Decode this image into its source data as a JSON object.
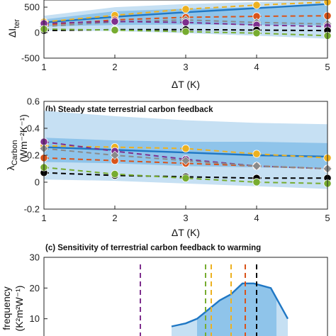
{
  "colors": {
    "band_light": "#c6e0f3",
    "band_dark": "#8fc4ea",
    "mean_line": "#1f77c4",
    "black": "#000000",
    "purple": "#7e2f8e",
    "orange": "#d95319",
    "yellow": "#edb120",
    "green": "#77ac30",
    "gray": "#8a8a8a"
  },
  "chart_data": [
    {
      "id": "a",
      "type": "line",
      "title": "",
      "ylabel_main": "ΔI",
      "ylabel_sub": "ter",
      "xlabel": "ΔT (K)",
      "x": [
        1,
        2,
        3,
        4,
        5
      ],
      "xticks": [
        "1",
        "2",
        "3",
        "4",
        "5"
      ],
      "yticks": [
        "-500",
        "0",
        "500"
      ],
      "ylim": [
        -500,
        640
      ],
      "xlim": [
        1,
        5
      ],
      "bands": [
        {
          "name": "outer",
          "upper": [
            330,
            500,
            560,
            600,
            640
          ],
          "lower": [
            40,
            30,
            -10,
            -60,
            -120
          ]
        },
        {
          "name": "inner",
          "upper": [
            260,
            420,
            470,
            500,
            530
          ],
          "lower": [
            120,
            150,
            160,
            150,
            140
          ]
        }
      ],
      "series": [
        {
          "name": "",
          "color": "mean_line",
          "dashed": false,
          "marker": "none",
          "values": [
            200,
            310,
            400,
            480,
            560
          ]
        },
        {
          "name": "",
          "color": "yellow",
          "dashed": true,
          "marker": "circle",
          "values": [
            210,
            340,
            460,
            540,
            600
          ]
        },
        {
          "name": "",
          "color": "orange",
          "dashed": true,
          "marker": "circle",
          "values": [
            150,
            250,
            300,
            320,
            330
          ]
        },
        {
          "name": "",
          "color": "gray",
          "dashed": true,
          "marker": "diamond",
          "values": [
            120,
            210,
            250,
            200,
            170
          ]
        },
        {
          "name": "",
          "color": "purple",
          "dashed": true,
          "marker": "circle",
          "values": [
            180,
            220,
            200,
            150,
            120
          ]
        },
        {
          "name": "",
          "color": "black",
          "dashed": true,
          "marker": "circle",
          "values": [
            40,
            60,
            60,
            50,
            40
          ]
        },
        {
          "name": "",
          "color": "green",
          "dashed": true,
          "marker": "circle",
          "values": [
            70,
            50,
            20,
            -10,
            -60
          ]
        }
      ]
    },
    {
      "id": "b",
      "type": "line",
      "title": "(b) Steady state terrestrial carbon feedback",
      "ylabel_main": "λ",
      "ylabel_sub": "Carbon",
      "ylabel_unit": "(Wm⁻²K⁻¹)",
      "xlabel": "ΔT (K)",
      "x": [
        1,
        2,
        3,
        4,
        5
      ],
      "xticks": [
        "1",
        "2",
        "3",
        "4",
        "5"
      ],
      "yticks": [
        "-0.2",
        "0",
        "0.2",
        "0.4",
        "0.6"
      ],
      "ylim": [
        -0.2,
        0.6
      ],
      "xlim": [
        1,
        5
      ],
      "bands": [
        {
          "name": "outer",
          "upper": [
            0.53,
            0.49,
            0.46,
            0.44,
            0.43
          ],
          "lower": [
            0.02,
            0.01,
            -0.01,
            -0.03,
            -0.05
          ]
        },
        {
          "name": "inner",
          "upper": [
            0.33,
            0.31,
            0.3,
            0.3,
            0.29
          ],
          "lower": [
            0.15,
            0.14,
            0.12,
            0.11,
            0.1
          ]
        }
      ],
      "series": [
        {
          "name": "",
          "color": "mean_line",
          "dashed": false,
          "marker": "none",
          "values": [
            0.26,
            0.24,
            0.22,
            0.2,
            0.19
          ]
        },
        {
          "name": "",
          "color": "yellow",
          "dashed": true,
          "marker": "circle",
          "values": [
            0.27,
            0.26,
            0.25,
            0.21,
            0.18
          ]
        },
        {
          "name": "",
          "color": "purple",
          "dashed": true,
          "marker": "circle",
          "values": [
            0.3,
            0.23,
            0.17,
            0.12,
            0.1
          ]
        },
        {
          "name": "",
          "color": "orange",
          "dashed": true,
          "marker": "circle",
          "values": [
            0.18,
            0.16,
            0.14,
            0.12,
            0.1
          ]
        },
        {
          "name": "",
          "color": "gray",
          "dashed": true,
          "marker": "diamond",
          "values": [
            0.25,
            0.2,
            0.16,
            0.12,
            0.1
          ]
        },
        {
          "name": "",
          "color": "black",
          "dashed": true,
          "marker": "circle",
          "values": [
            0.07,
            0.05,
            0.04,
            0.03,
            0.03
          ]
        },
        {
          "name": "",
          "color": "green",
          "dashed": true,
          "marker": "circle",
          "values": [
            0.11,
            0.06,
            0.03,
            0.0,
            -0.01
          ]
        }
      ]
    },
    {
      "id": "c",
      "type": "area",
      "title": "(c) Sensitivity of terrestrial carbon feedback to warming",
      "ylabel_main": "frequency",
      "ylabel_unit": "(K²m²W⁻¹)",
      "yticks": [
        "10",
        "20",
        "30"
      ],
      "ylim": [
        0,
        30
      ],
      "xlim": [
        -0.05,
        0.05
      ],
      "curve": {
        "x": [
          -0.005,
          0.0,
          0.004,
          0.008,
          0.012,
          0.016,
          0.02,
          0.024,
          0.03,
          0.036
        ],
        "y": [
          7.5,
          8.5,
          10.0,
          13.0,
          16.0,
          18.0,
          21.5,
          21.5,
          20.0,
          10.0
        ]
      },
      "inner_range": [
        0.004,
        0.032
      ],
      "vlines": [
        {
          "color": "purple",
          "x": -0.016
        },
        {
          "color": "green",
          "x": 0.007
        },
        {
          "color": "yellow",
          "x": 0.009
        },
        {
          "color": "yellow",
          "x": 0.016
        },
        {
          "color": "orange",
          "x": 0.021
        },
        {
          "color": "black",
          "x": 0.025
        }
      ]
    }
  ]
}
